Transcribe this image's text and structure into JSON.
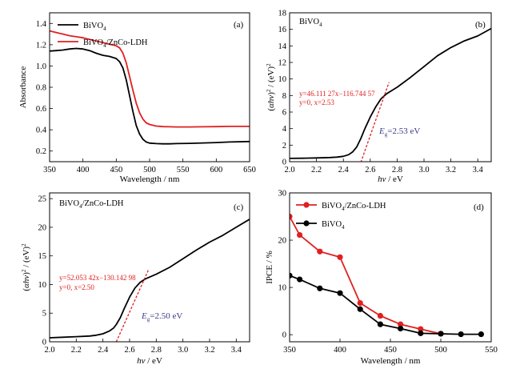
{
  "chart_data": [
    {
      "id": "a",
      "type": "line",
      "panel_label": "(a)",
      "xlabel": "Wavelength / nm",
      "ylabel": "Absorbance",
      "xlim": [
        350,
        650
      ],
      "ylim": [
        0.1,
        1.5
      ],
      "xticks": [
        350,
        400,
        450,
        500,
        550,
        600,
        650
      ],
      "yticks": [
        0.2,
        0.4,
        0.6,
        0.8,
        1.0,
        1.2,
        1.4
      ],
      "legend_position": "top-left",
      "series": [
        {
          "name": "BiVO4",
          "name_main": "BiVO",
          "name_sub": "4",
          "color": "#000000",
          "x": [
            350,
            360,
            370,
            380,
            390,
            400,
            410,
            420,
            430,
            440,
            450,
            455,
            460,
            465,
            470,
            475,
            480,
            485,
            490,
            495,
            500,
            510,
            520,
            530,
            540,
            560,
            580,
            600,
            620,
            650
          ],
          "y": [
            1.14,
            1.145,
            1.15,
            1.16,
            1.165,
            1.16,
            1.145,
            1.12,
            1.1,
            1.09,
            1.07,
            1.04,
            0.98,
            0.87,
            0.72,
            0.57,
            0.44,
            0.36,
            0.31,
            0.285,
            0.275,
            0.27,
            0.268,
            0.268,
            0.27,
            0.272,
            0.276,
            0.28,
            0.285,
            0.29
          ]
        },
        {
          "name": "BiVO4/ZnCo-LDH",
          "name_main": "BiVO",
          "name_sub": "4",
          "name_rest": "/ZnCo-LDH",
          "color": "#e02020",
          "x": [
            350,
            360,
            370,
            380,
            390,
            400,
            410,
            420,
            430,
            440,
            450,
            455,
            460,
            465,
            470,
            475,
            480,
            485,
            490,
            495,
            500,
            510,
            520,
            530,
            540,
            560,
            580,
            600,
            620,
            650
          ],
          "y": [
            1.33,
            1.315,
            1.3,
            1.285,
            1.275,
            1.265,
            1.25,
            1.235,
            1.22,
            1.205,
            1.19,
            1.17,
            1.12,
            1.03,
            0.9,
            0.77,
            0.65,
            0.56,
            0.5,
            0.465,
            0.45,
            0.435,
            0.43,
            0.428,
            0.427,
            0.427,
            0.428,
            0.43,
            0.432,
            0.432
          ]
        }
      ]
    },
    {
      "id": "b",
      "type": "line",
      "panel_label": "(b)",
      "title_main": "BiVO",
      "title_sub": "4",
      "xlabel": "hv / eV",
      "ylabel": "(αhν)² / (eV)²",
      "xlim": [
        2.0,
        3.5
      ],
      "ylim": [
        0,
        18
      ],
      "xticks": [
        2.0,
        2.2,
        2.4,
        2.6,
        2.8,
        3.0,
        3.2,
        3.4
      ],
      "xtick_labels": [
        "2.0",
        "2.2",
        "2.4",
        "2.6",
        "2.8",
        "3.0",
        "3.2",
        "3.4"
      ],
      "yticks": [
        0,
        2,
        4,
        6,
        8,
        10,
        12,
        14,
        16,
        18
      ],
      "series": [
        {
          "name": "",
          "color": "#000000",
          "x": [
            2.0,
            2.1,
            2.2,
            2.3,
            2.35,
            2.4,
            2.44,
            2.47,
            2.5,
            2.53,
            2.56,
            2.6,
            2.64,
            2.68,
            2.72,
            2.76,
            2.8,
            2.9,
            3.0,
            3.1,
            3.2,
            3.3,
            3.4,
            3.5
          ],
          "y": [
            0.4,
            0.42,
            0.45,
            0.5,
            0.55,
            0.65,
            0.85,
            1.2,
            1.8,
            2.8,
            4.0,
            5.4,
            6.6,
            7.6,
            8.2,
            8.6,
            9.0,
            10.2,
            11.5,
            12.8,
            13.8,
            14.6,
            15.2,
            16.1
          ]
        }
      ],
      "fit": {
        "x": [
          2.53,
          2.74
        ],
        "slope": 46.11127,
        "intercept": -116.74457,
        "color": "#e02020"
      },
      "annotation_fit": "y=46.111 27x−116.744 57",
      "annotation_root": "y=0, x=2.53",
      "annotation_eg_value": "=2.53 eV"
    },
    {
      "id": "c",
      "type": "line",
      "panel_label": "(c)",
      "title_main": "BiVO",
      "title_sub": "4",
      "title_rest": "/ZnCo-LDH",
      "xlabel": "hv / eV",
      "ylabel": "(αhν)² / (eV)²",
      "xlim": [
        2.0,
        3.5
      ],
      "ylim": [
        0,
        26
      ],
      "xticks": [
        2.0,
        2.2,
        2.4,
        2.6,
        2.8,
        3.0,
        3.2,
        3.4
      ],
      "xtick_labels": [
        "2.0",
        "2.2",
        "2.4",
        "2.6",
        "2.8",
        "3.0",
        "3.2",
        "3.4"
      ],
      "yticks": [
        0,
        5,
        10,
        15,
        20,
        25
      ],
      "series": [
        {
          "name": "",
          "color": "#000000",
          "x": [
            2.0,
            2.1,
            2.2,
            2.3,
            2.35,
            2.4,
            2.45,
            2.48,
            2.5,
            2.53,
            2.56,
            2.6,
            2.64,
            2.68,
            2.72,
            2.8,
            2.9,
            3.0,
            3.1,
            3.2,
            3.3,
            3.4,
            3.5
          ],
          "y": [
            0.7,
            0.8,
            0.9,
            1.0,
            1.15,
            1.4,
            1.9,
            2.4,
            3.0,
            4.2,
            5.8,
            7.8,
            9.4,
            10.4,
            11.0,
            11.8,
            13.0,
            14.5,
            16.0,
            17.4,
            18.6,
            20.0,
            21.4
          ]
        }
      ],
      "fit": {
        "x": [
          2.5,
          2.74
        ],
        "slope": 52.05342,
        "intercept": -130.14298,
        "color": "#e02020"
      },
      "annotation_fit": "y=52.053 42x−130.142 98",
      "annotation_root": "y=0, x=2.50",
      "annotation_eg_value": "=2.50 eV"
    },
    {
      "id": "d",
      "type": "line",
      "panel_label": "(d)",
      "xlabel": "Wavelength / nm",
      "ylabel": "IPCE / %",
      "xlim": [
        350,
        550
      ],
      "ylim": [
        -1.5,
        30
      ],
      "xticks": [
        350,
        400,
        450,
        500,
        550
      ],
      "yticks": [
        0,
        10,
        20,
        30
      ],
      "legend_position": "top-left",
      "series": [
        {
          "name": "BiVO4/ZnCo-LDH",
          "name_main": "BiVO",
          "name_sub": "4",
          "name_rest": "/ZnCo-LDH",
          "color": "#e02020",
          "x": [
            350,
            360,
            380,
            400,
            420,
            440,
            460,
            480,
            500
          ],
          "y": [
            25.0,
            21.1,
            17.6,
            16.4,
            6.7,
            4.0,
            2.2,
            1.2,
            0.2
          ]
        },
        {
          "name": "BiVO4",
          "name_main": "BiVO",
          "name_sub": "4",
          "color": "#000000",
          "x": [
            350,
            360,
            380,
            400,
            420,
            440,
            460,
            480,
            500,
            520,
            540
          ],
          "y": [
            12.5,
            11.7,
            9.8,
            8.8,
            5.4,
            2.2,
            1.3,
            0.3,
            0.2,
            0.1,
            0.1
          ]
        }
      ]
    }
  ]
}
